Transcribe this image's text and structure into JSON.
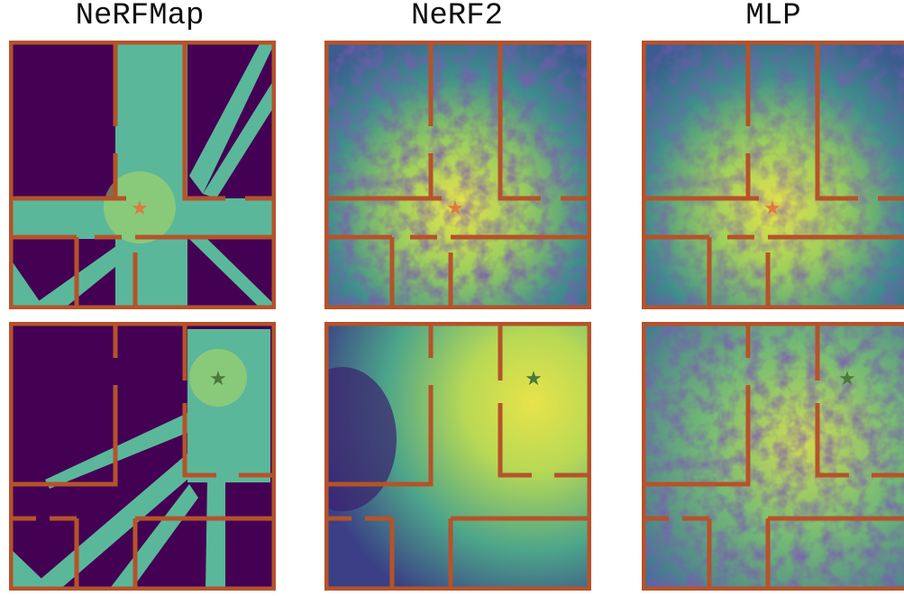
{
  "columns": [
    {
      "title": "NeRFMap"
    },
    {
      "title": "NeRF2"
    },
    {
      "title": "MLP"
    }
  ]
}
